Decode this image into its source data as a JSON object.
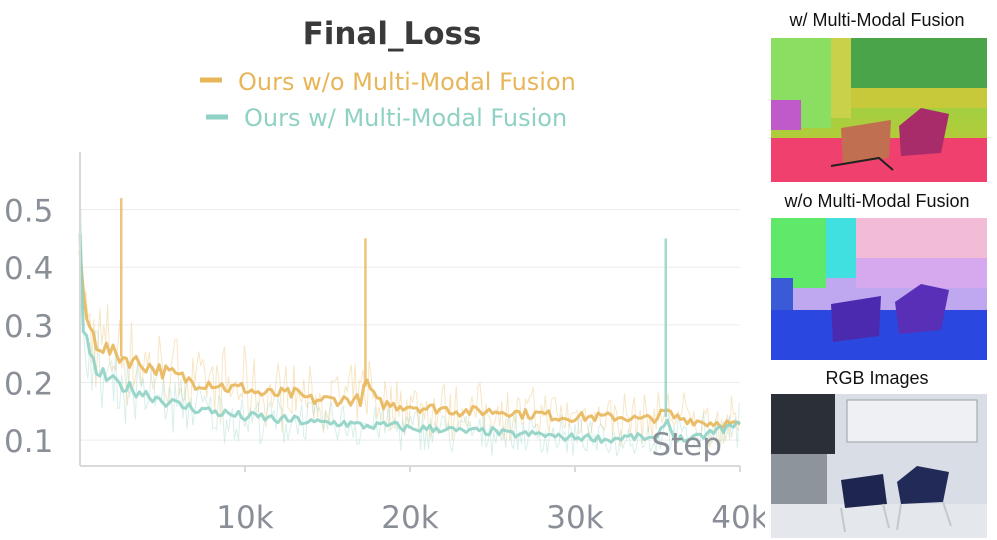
{
  "chart_data": {
    "type": "line",
    "title": "Final_Loss",
    "xlabel": "Step",
    "ylabel": "",
    "xlim": [
      0,
      40000
    ],
    "ylim": [
      0.055,
      0.6
    ],
    "x_ticks": [
      10000,
      20000,
      30000,
      40000
    ],
    "x_tick_labels": [
      "10k",
      "20k",
      "30k",
      "40k"
    ],
    "y_ticks": [
      0.1,
      0.2,
      0.3,
      0.4,
      0.5
    ],
    "y_tick_labels": [
      "0.1",
      "0.2",
      "0.3",
      "0.4",
      "0.5"
    ],
    "grid": true,
    "legend": "top",
    "series": [
      {
        "name": "Ours w/o Multi-Modal Fusion",
        "color": "#e8b65a",
        "x": [
          0,
          200,
          500,
          1000,
          2000,
          3000,
          4000,
          5000,
          6000,
          7000,
          8000,
          9000,
          10000,
          11000,
          12000,
          13000,
          14000,
          15000,
          16000,
          17000,
          17400,
          18000,
          19000,
          20000,
          21000,
          22000,
          23000,
          24000,
          25000,
          26000,
          27000,
          28000,
          29000,
          30000,
          31000,
          32000,
          33000,
          34000,
          35000,
          35500,
          36000,
          37000,
          38000,
          39000,
          40000
        ],
        "values": [
          0.43,
          0.34,
          0.3,
          0.27,
          0.25,
          0.24,
          0.23,
          0.22,
          0.21,
          0.2,
          0.2,
          0.19,
          0.19,
          0.18,
          0.18,
          0.18,
          0.17,
          0.17,
          0.17,
          0.17,
          0.2,
          0.165,
          0.16,
          0.16,
          0.155,
          0.155,
          0.15,
          0.15,
          0.15,
          0.15,
          0.145,
          0.145,
          0.14,
          0.14,
          0.14,
          0.14,
          0.14,
          0.135,
          0.14,
          0.15,
          0.14,
          0.135,
          0.13,
          0.13,
          0.125
        ]
      },
      {
        "name": "Ours w/ Multi-Modal Fusion",
        "color": "#8fd1c4",
        "x": [
          0,
          200,
          500,
          1000,
          2000,
          3000,
          4000,
          5000,
          6000,
          7000,
          8000,
          9000,
          10000,
          11000,
          12000,
          13000,
          14000,
          15000,
          16000,
          17000,
          18000,
          19000,
          20000,
          21000,
          22000,
          23000,
          24000,
          25000,
          26000,
          27000,
          28000,
          29000,
          30000,
          31000,
          32000,
          33000,
          34000,
          35000,
          35500,
          36000,
          37000,
          38000,
          39000,
          40000
        ],
        "values": [
          0.44,
          0.3,
          0.25,
          0.22,
          0.2,
          0.19,
          0.18,
          0.17,
          0.16,
          0.155,
          0.15,
          0.145,
          0.14,
          0.14,
          0.135,
          0.135,
          0.13,
          0.13,
          0.13,
          0.125,
          0.125,
          0.125,
          0.12,
          0.12,
          0.12,
          0.115,
          0.115,
          0.115,
          0.11,
          0.11,
          0.11,
          0.105,
          0.105,
          0.105,
          0.1,
          0.105,
          0.105,
          0.1,
          0.14,
          0.105,
          0.1,
          0.11,
          0.12,
          0.125
        ]
      }
    ],
    "spikes": [
      {
        "series": 0,
        "x": 2500,
        "y": 0.52
      },
      {
        "series": 0,
        "x": 17300,
        "y": 0.45
      },
      {
        "series": 1,
        "x": 35500,
        "y": 0.45
      }
    ]
  },
  "panels": [
    {
      "title": "w/ Multi-Modal Fusion",
      "image": "feature-map-with-fusion"
    },
    {
      "title": "w/o Multi-Modal Fusion",
      "image": "feature-map-without-fusion"
    },
    {
      "title": "RGB Images",
      "image": "rgb-photo-two-chairs"
    }
  ]
}
